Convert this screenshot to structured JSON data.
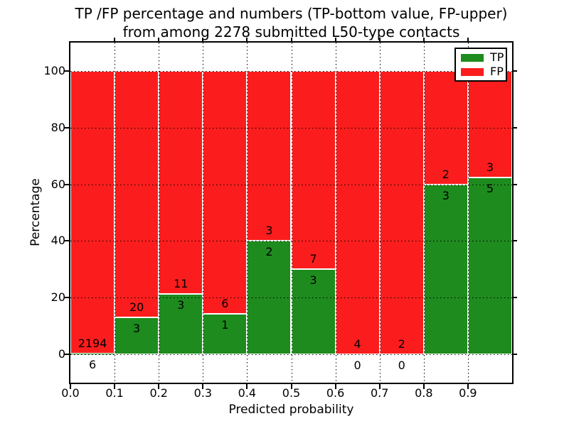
{
  "chart_data": {
    "type": "bar",
    "stacked": true,
    "orientation": "vertical",
    "title": "TP /FP percentage and numbers (TP-bottom value, FP-upper)\nfrom among 2278 submitted L50-type contacts",
    "title_line1": "TP /FP percentage and numbers (TP-bottom value, FP-upper)",
    "title_line2": "from among 2278 submitted L50-type contacts",
    "xlabel": "Predicted probability",
    "ylabel": "Percentage",
    "xlim": [
      0.0,
      1.0
    ],
    "ylim": [
      -10,
      110
    ],
    "total_contacts": 2278,
    "x_tick_labels": [
      "0.0",
      "0.1",
      "0.2",
      "0.3",
      "0.4",
      "0.5",
      "0.6",
      "0.7",
      "0.8",
      "0.9"
    ],
    "x_tick_values": [
      0.0,
      0.1,
      0.2,
      0.3,
      0.4,
      0.5,
      0.6,
      0.7,
      0.8,
      0.9
    ],
    "y_tick_labels": [
      "0",
      "20",
      "40",
      "60",
      "80",
      "100"
    ],
    "y_tick_values": [
      0,
      20,
      40,
      60,
      80,
      100
    ],
    "grid": {
      "style": "dotted",
      "color": "#000000",
      "x_positions": [
        0.1,
        0.2,
        0.3,
        0.4,
        0.5,
        0.6,
        0.7,
        0.8,
        0.9
      ],
      "y_positions": [
        0,
        20,
        40,
        60,
        80,
        100
      ]
    },
    "bins": [
      {
        "x0": 0.0,
        "x1": 0.1,
        "tp": 6,
        "fp": 2194,
        "tp_pct": 0.27,
        "fp_pct": 99.73
      },
      {
        "x0": 0.1,
        "x1": 0.2,
        "tp": 3,
        "fp": 20,
        "tp_pct": 13.04,
        "fp_pct": 86.96
      },
      {
        "x0": 0.2,
        "x1": 0.3,
        "tp": 3,
        "fp": 11,
        "tp_pct": 21.43,
        "fp_pct": 78.57
      },
      {
        "x0": 0.3,
        "x1": 0.4,
        "tp": 1,
        "fp": 6,
        "tp_pct": 14.29,
        "fp_pct": 85.71
      },
      {
        "x0": 0.4,
        "x1": 0.5,
        "tp": 2,
        "fp": 3,
        "tp_pct": 40.0,
        "fp_pct": 60.0
      },
      {
        "x0": 0.5,
        "x1": 0.6,
        "tp": 3,
        "fp": 7,
        "tp_pct": 30.0,
        "fp_pct": 70.0
      },
      {
        "x0": 0.6,
        "x1": 0.7,
        "tp": 0,
        "fp": 4,
        "tp_pct": 0.0,
        "fp_pct": 100.0
      },
      {
        "x0": 0.7,
        "x1": 0.8,
        "tp": 0,
        "fp": 2,
        "tp_pct": 0.0,
        "fp_pct": 100.0
      },
      {
        "x0": 0.8,
        "x1": 0.9,
        "tp": 3,
        "fp": 2,
        "tp_pct": 60.0,
        "fp_pct": 40.0
      },
      {
        "x0": 0.9,
        "x1": 1.0,
        "tp": 5,
        "fp": 3,
        "tp_pct": 62.5,
        "fp_pct": 37.5
      }
    ],
    "legend": {
      "position": "upper-right",
      "entries": [
        {
          "label": "TP",
          "color": "#1e8b1e"
        },
        {
          "label": "FP",
          "color": "#fb1d1d"
        }
      ]
    },
    "colors": {
      "tp": "#1e8b1e",
      "fp": "#fb1d1d",
      "bar_edge": "#ffffff",
      "axes": "#000000",
      "grid": "#000000",
      "background": "#ffffff",
      "text": "#000000"
    }
  }
}
